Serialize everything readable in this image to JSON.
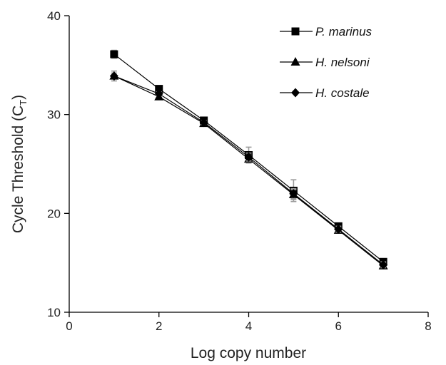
{
  "chart_data": {
    "type": "line",
    "title": "",
    "xlabel": "Log copy number",
    "ylabel_main": "Cycle Threshold (C",
    "ylabel_sub": "T",
    "ylabel_close": ")",
    "xlim": [
      0,
      8
    ],
    "ylim": [
      10,
      40
    ],
    "xticks": [
      0,
      2,
      4,
      6,
      8
    ],
    "yticks": [
      10,
      20,
      30,
      40
    ],
    "grid": false,
    "legend_position": "top-right",
    "x": [
      1,
      2,
      3,
      4,
      5,
      6,
      7
    ],
    "series": [
      {
        "name": "P. marinus",
        "marker": "square",
        "values": [
          36.1,
          32.6,
          29.4,
          25.9,
          22.3,
          18.7,
          15.1
        ],
        "error": [
          0.4,
          0.2,
          0.2,
          0.8,
          1.1,
          0.2,
          0.2
        ]
      },
      {
        "name": "H. nelsoni",
        "marker": "triangle",
        "values": [
          33.9,
          31.8,
          29.1,
          25.5,
          21.9,
          18.3,
          14.7
        ],
        "error": [
          0.3,
          0.2,
          0.2,
          0.4,
          0.5,
          0.3,
          0.3
        ]
      },
      {
        "name": "H. costale",
        "marker": "diamond",
        "values": [
          33.9,
          32.1,
          29.2,
          25.7,
          22.0,
          18.4,
          14.8
        ],
        "error": [
          0.5,
          0.2,
          0.2,
          0.4,
          0.5,
          0.3,
          0.3
        ]
      }
    ]
  }
}
